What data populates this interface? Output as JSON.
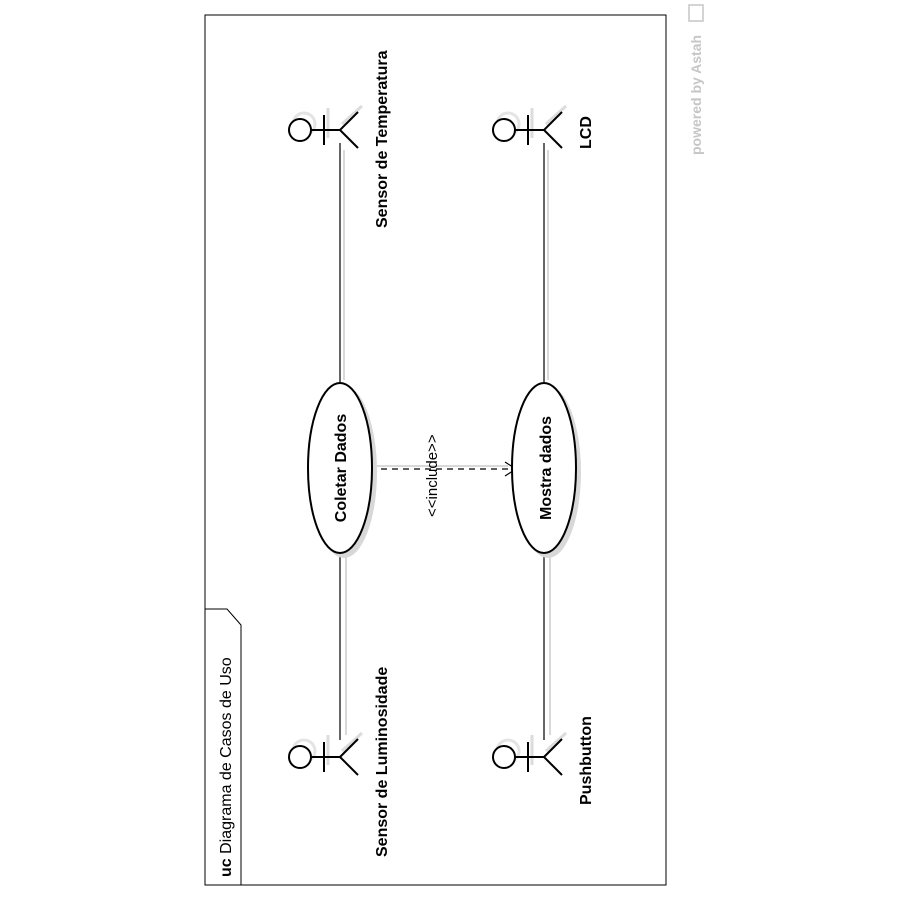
{
  "diagram": {
    "frame_keyword": "uc",
    "frame_title": "Diagrama de Casos de Uso",
    "watermark": "powered by Astah",
    "actors": {
      "sensor_temperatura": "Sensor de Temperatura",
      "lcd": "LCD",
      "sensor_luminosidade": "Sensor de Luminosidade",
      "pushbutton": "Pushbutton"
    },
    "use_cases": {
      "coletar_dados": "Coletar Dados",
      "mostra_dados": "Mostra dados"
    },
    "relationships": {
      "include_label": "<<include>>"
    }
  }
}
